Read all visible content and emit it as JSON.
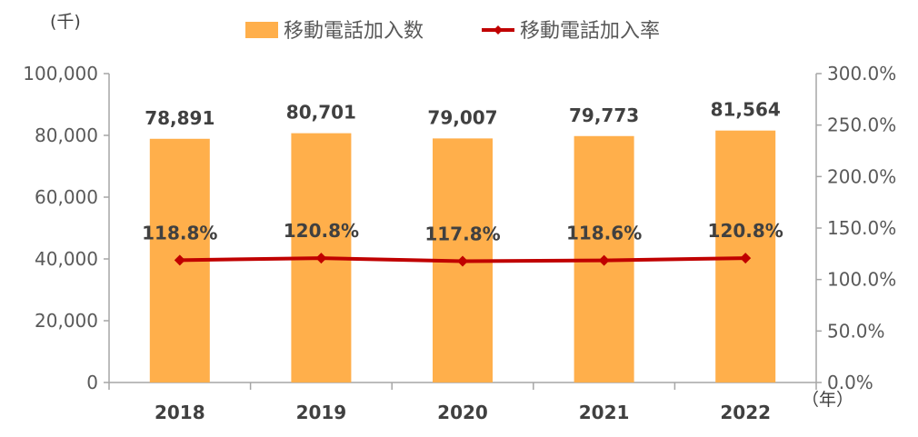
{
  "chart_data": {
    "type": "bar",
    "categories": [
      "2018",
      "2019",
      "2020",
      "2021",
      "2022"
    ],
    "series": [
      {
        "name": "移動電話加入数",
        "type": "bar",
        "axis": "left",
        "values": [
          78891,
          80701,
          79007,
          79773,
          81564
        ],
        "labels": [
          "78,891",
          "80,701",
          "79,007",
          "79,773",
          "81,564"
        ]
      },
      {
        "name": "移動電話加入率",
        "type": "line",
        "axis": "right",
        "values": [
          118.8,
          120.8,
          117.8,
          118.6,
          120.8
        ],
        "labels": [
          "118.8%",
          "120.8%",
          "117.8%",
          "118.6%",
          "120.8%"
        ]
      }
    ],
    "y_left": {
      "unit": "(千)",
      "ylim": [
        0,
        100000
      ],
      "ticks": [
        0,
        20000,
        40000,
        60000,
        80000,
        100000
      ],
      "tick_labels": [
        "0",
        "20,000",
        "40,000",
        "60,000",
        "80,000",
        "100,000"
      ]
    },
    "y_right": {
      "ylim": [
        0,
        300
      ],
      "ticks": [
        0,
        50,
        100,
        150,
        200,
        250,
        300
      ],
      "tick_labels": [
        "0.0%",
        "50.0%",
        "100.0%",
        "150.0%",
        "200.0%",
        "250.0%",
        "300.0%"
      ]
    },
    "x_unit": "（年）",
    "legend_position": "top",
    "grid": false,
    "colors": {
      "bar": "#FFAF4B",
      "line": "#C00000",
      "axis": "#A6A6A6"
    }
  }
}
